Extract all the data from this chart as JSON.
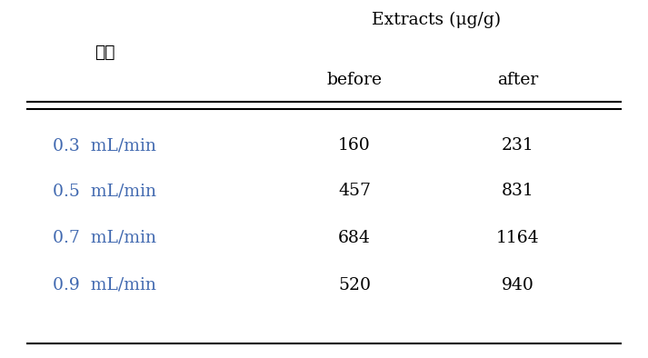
{
  "header_col": "종류",
  "header_group": "Extracts (μg/g)",
  "subheaders": [
    "before",
    "after"
  ],
  "rows": [
    [
      "0.3  mL/min",
      "160",
      "231"
    ],
    [
      "0.5  mL/min",
      "457",
      "831"
    ],
    [
      "0.7  mL/min",
      "684",
      "1164"
    ],
    [
      "0.9  mL/min",
      "520",
      "940"
    ]
  ],
  "row_color": "#4169b0",
  "header_color": "#000000",
  "bg_color": "#ffffff",
  "fontsize": 13.5,
  "header_fontsize": 13.5
}
